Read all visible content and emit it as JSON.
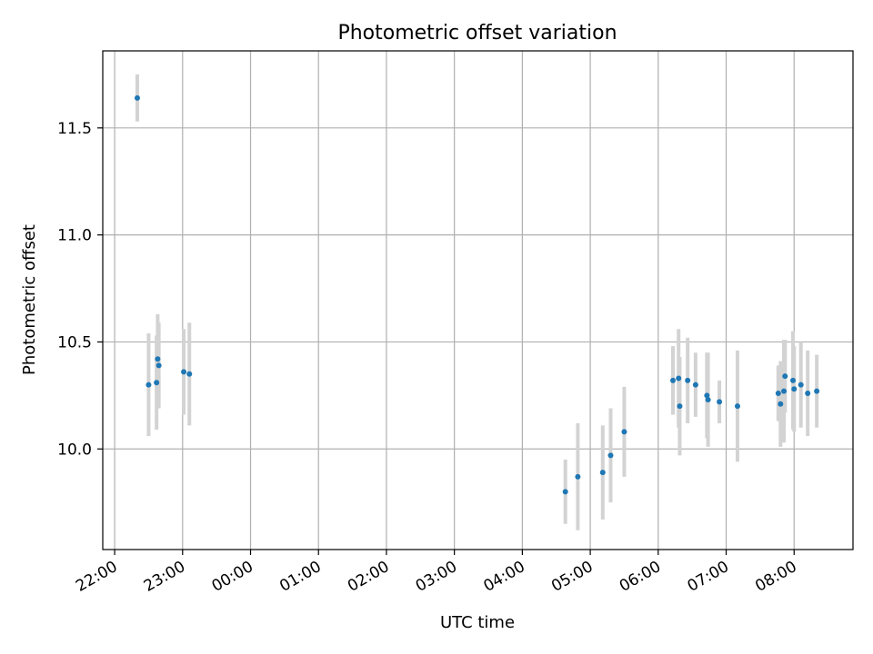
{
  "chart_data": {
    "type": "scatter",
    "title": "Photometric offset variation",
    "xlabel": "UTC time",
    "ylabel": "Photometric offset",
    "x_ticks": [
      "22:00",
      "23:00",
      "00:00",
      "01:00",
      "02:00",
      "03:00",
      "04:00",
      "05:00",
      "06:00",
      "07:00",
      "08:00"
    ],
    "y_ticks": [
      "10.0",
      "10.5",
      "11.0",
      "11.5"
    ],
    "grid": true,
    "colors": {
      "marker": "#1f77b4",
      "errorbar": "#d3d3d3",
      "grid": "#b0b0b0"
    },
    "series": [
      {
        "x": [
          "22:20",
          "22:30",
          "22:37",
          "22:38",
          "22:39",
          "23:01",
          "23:06",
          "04:38",
          "04:49",
          "05:11",
          "05:18",
          "05:30",
          "06:13",
          "06:18",
          "06:19",
          "06:26",
          "06:33",
          "06:43",
          "06:44",
          "06:54",
          "07:10",
          "07:46",
          "07:48",
          "07:51",
          "07:52",
          "07:59",
          "08:00",
          "08:06",
          "08:12",
          "08:20"
        ],
        "y": [
          11.64,
          10.3,
          10.31,
          10.42,
          10.39,
          10.36,
          10.35,
          9.8,
          9.87,
          9.89,
          9.97,
          10.08,
          10.32,
          10.33,
          10.2,
          10.32,
          10.3,
          10.25,
          10.23,
          10.22,
          10.2,
          10.26,
          10.21,
          10.27,
          10.34,
          10.32,
          10.28,
          10.3,
          10.26,
          10.27
        ],
        "yerr": [
          0.11,
          0.24,
          0.22,
          0.21,
          0.2,
          0.2,
          0.24,
          0.15,
          0.25,
          0.22,
          0.22,
          0.21,
          0.16,
          0.23,
          0.23,
          0.2,
          0.15,
          0.2,
          0.22,
          0.1,
          0.26,
          0.13,
          0.2,
          0.24,
          0.17,
          0.23,
          0.2,
          0.2,
          0.2,
          0.17
        ]
      }
    ]
  }
}
